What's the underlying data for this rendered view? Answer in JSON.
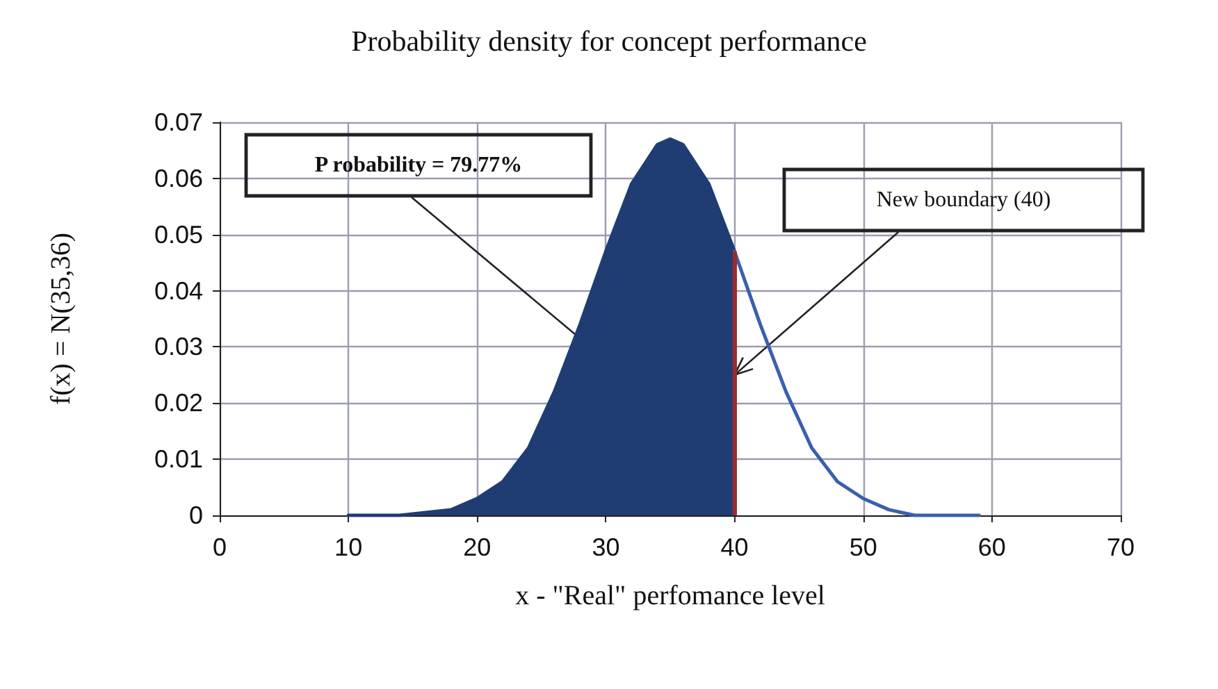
{
  "chart_data": {
    "type": "area",
    "title": "Probability density for concept performance",
    "xlabel": "x - \"Real\" perfomance level",
    "ylabel": "f(x) = N(35,36)",
    "series": [
      {
        "color": "#1f3d73",
        "x": [
          10,
          14,
          18,
          20,
          22,
          24,
          26,
          28,
          30,
          32,
          34,
          35,
          36,
          38,
          40
        ],
        "values": [
          0,
          0,
          0.001,
          0.003,
          0.006,
          0.012,
          0.022,
          0.034,
          0.047,
          0.059,
          0.066,
          0.067,
          0.066,
          0.059,
          0.047
        ]
      },
      {
        "type": "line",
        "color": "#3a5fad",
        "x": [
          40,
          42,
          44,
          46,
          48,
          50,
          52,
          54,
          56,
          59
        ],
        "values": [
          0.047,
          0.034,
          0.022,
          0.012,
          0.006,
          0.003,
          0.001,
          0,
          0,
          0
        ]
      }
    ],
    "xlim": [
      0,
      70
    ],
    "xticks": [
      0,
      10,
      20,
      30,
      40,
      50,
      60,
      70
    ],
    "ylim": [
      0,
      0.07
    ],
    "yticks": [
      0,
      0.01,
      0.02,
      0.03,
      0.04,
      0.05,
      0.06,
      0.07
    ],
    "ref_lines": [
      {
        "axis": "x",
        "value": 40,
        "color": "#9e2a2a"
      }
    ],
    "annotations": [
      "P robability = 79.77%",
      {
        "text": "New boundary (40)",
        "x": 40,
        "y": 0.025
      }
    ],
    "grid": true,
    "marker": "none",
    "line_style": "solid"
  }
}
